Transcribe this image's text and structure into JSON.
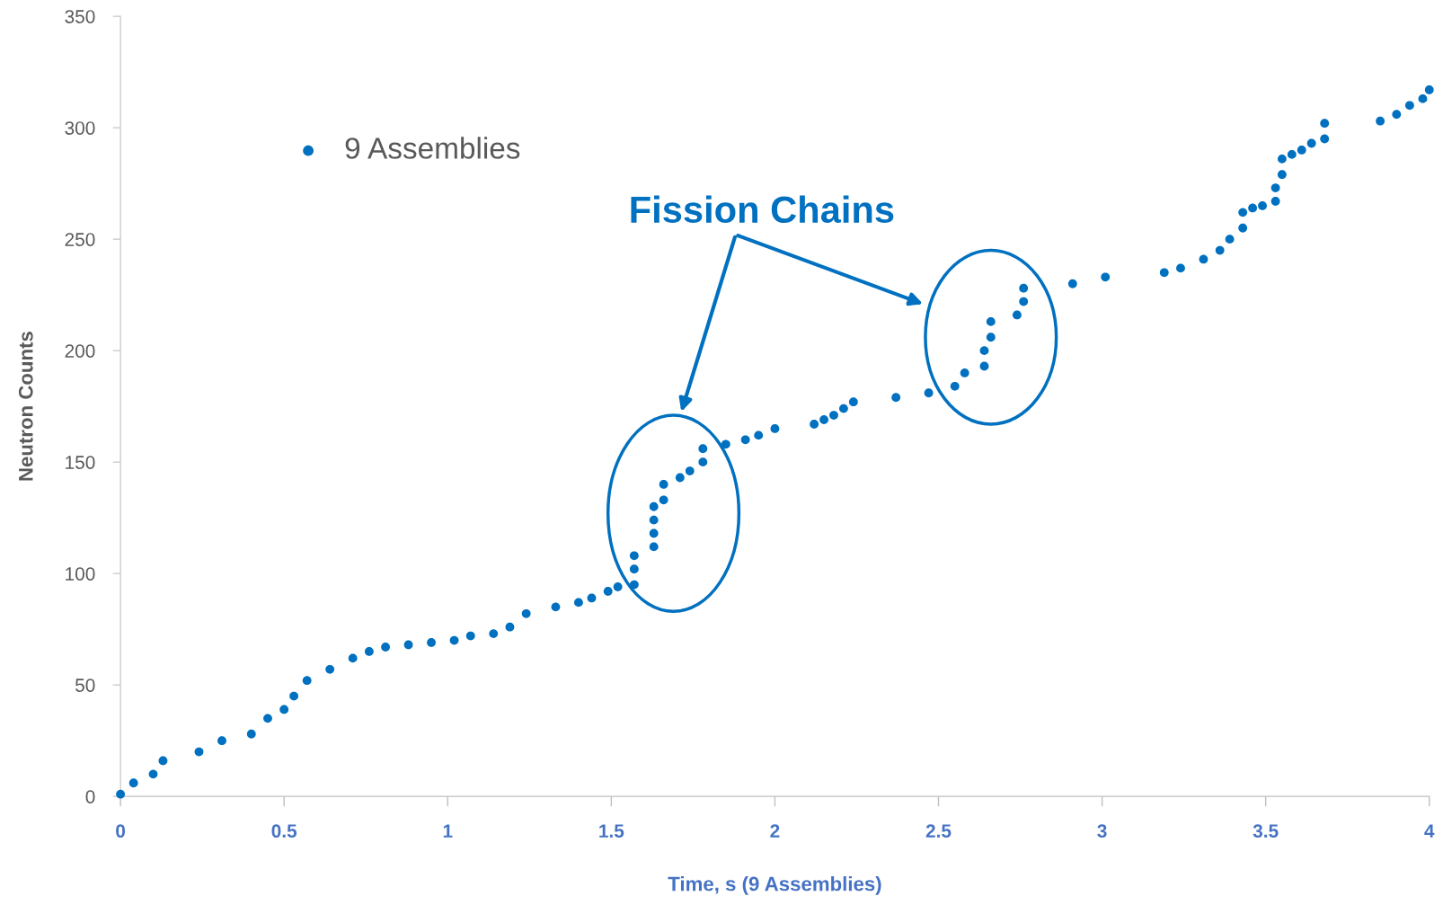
{
  "chart_data": {
    "type": "scatter",
    "xlabel": "Time, s (9 Assemblies)",
    "ylabel": "Neutron Counts",
    "annotations": [
      "Fission Chains"
    ],
    "series": [
      {
        "name": "9 Assemblies",
        "color": "#0070c0",
        "x": [
          0,
          0.04,
          0.1,
          0.13,
          0.24,
          0.31,
          0.4,
          0.45,
          0.5,
          0.53,
          0.57,
          0.64,
          0.71,
          0.76,
          0.81,
          0.88,
          0.95,
          1.02,
          1.07,
          1.14,
          1.19,
          1.24,
          1.33,
          1.4,
          1.44,
          1.49,
          1.52,
          1.57,
          1.57,
          1.57,
          1.63,
          1.63,
          1.63,
          1.63,
          1.66,
          1.66,
          1.71,
          1.74,
          1.78,
          1.78,
          1.85,
          1.91,
          1.95,
          2.0,
          2.12,
          2.15,
          2.18,
          2.21,
          2.24,
          2.37,
          2.47,
          2.55,
          2.58,
          2.64,
          2.64,
          2.66,
          2.66,
          2.74,
          2.76,
          2.76,
          2.91,
          3.01,
          3.19,
          3.24,
          3.31,
          3.36,
          3.39,
          3.43,
          3.43,
          3.46,
          3.49,
          3.53,
          3.53,
          3.55,
          3.55,
          3.58,
          3.61,
          3.64,
          3.68,
          3.68,
          3.85,
          3.9,
          3.94,
          3.98,
          4.0
        ],
        "values": [
          1,
          6,
          10,
          16,
          20,
          25,
          28,
          35,
          39,
          45,
          52,
          57,
          62,
          65,
          67,
          68,
          69,
          70,
          72,
          73,
          76,
          82,
          85,
          87,
          89,
          92,
          94,
          95,
          102,
          108,
          112,
          118,
          124,
          130,
          133,
          140,
          143,
          146,
          150,
          156,
          158,
          160,
          162,
          165,
          167,
          169,
          171,
          174,
          177,
          179,
          181,
          184,
          190,
          193,
          200,
          206,
          213,
          216,
          222,
          228,
          230,
          233,
          235,
          237,
          241,
          245,
          250,
          255,
          262,
          264,
          265,
          267,
          273,
          279,
          286,
          288,
          290,
          293,
          295,
          302,
          303,
          306,
          310,
          313,
          317
        ]
      }
    ],
    "xlim": [
      0,
      4
    ],
    "xticks": [
      0,
      0.5,
      1,
      1.5,
      2,
      2.5,
      3,
      3.5,
      4
    ],
    "ylim": [
      0,
      350
    ],
    "yticks": [
      0,
      50,
      100,
      150,
      200,
      250,
      300,
      350
    ],
    "marker": "circle",
    "legend": "top left",
    "grid": false
  }
}
